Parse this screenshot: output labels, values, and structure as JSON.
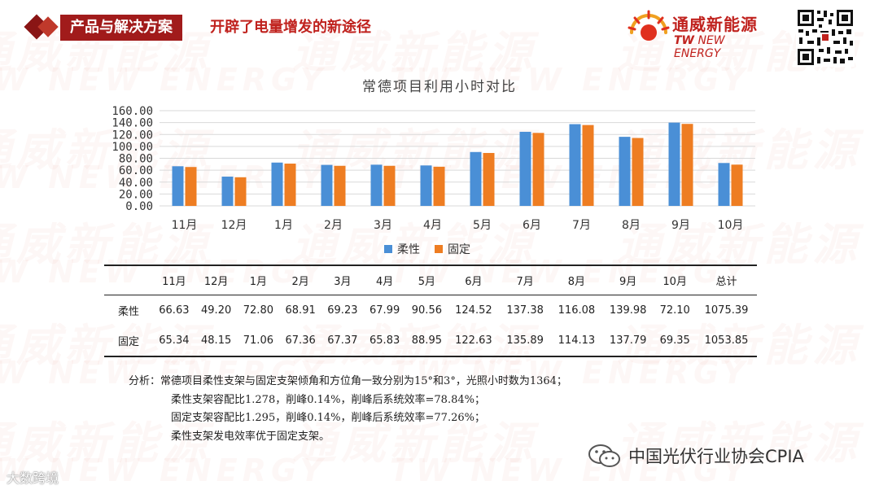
{
  "header": {
    "tag": "产品与解决方案",
    "subtitle": "开辟了电量增发的新途径",
    "logo_cn": "通威新能源",
    "logo_en_tw": "TW",
    "logo_en_rest": " NEW ENERGY"
  },
  "watermark": {
    "cn": "通威新能源",
    "en": "TW NEW ENERGY"
  },
  "chart_data": {
    "type": "bar",
    "title": "常德项目利用小时对比",
    "categories": [
      "11月",
      "12月",
      "1月",
      "2月",
      "3月",
      "4月",
      "5月",
      "6月",
      "7月",
      "8月",
      "9月",
      "10月"
    ],
    "series": [
      {
        "name": "柔性",
        "color": "#4a8fd6",
        "values": [
          66.63,
          49.2,
          72.8,
          68.91,
          69.23,
          67.99,
          90.56,
          124.52,
          137.38,
          116.08,
          139.98,
          72.1
        ]
      },
      {
        "name": "固定",
        "color": "#ee7d22",
        "values": [
          65.34,
          48.15,
          71.06,
          67.36,
          67.37,
          65.83,
          88.95,
          122.63,
          135.89,
          114.13,
          137.79,
          69.35
        ]
      }
    ],
    "ylim": [
      0,
      160
    ],
    "yticks": [
      "0.00",
      "20.00",
      "40.00",
      "60.00",
      "80.00",
      "100.00",
      "120.00",
      "140.00",
      "160.00"
    ],
    "grid": true,
    "legend": "bottom"
  },
  "table": {
    "headers": [
      "11月",
      "12月",
      "1月",
      "2月",
      "3月",
      "4月",
      "5月",
      "6月",
      "7月",
      "8月",
      "9月",
      "10月",
      "总计"
    ],
    "rows": [
      {
        "label": "柔性",
        "cells": [
          "66.63",
          "49.20",
          "72.80",
          "68.91",
          "69.23",
          "67.99",
          "90.56",
          "124.52",
          "137.38",
          "116.08",
          "139.98",
          "72.10",
          "1075.39"
        ]
      },
      {
        "label": "固定",
        "cells": [
          "65.34",
          "48.15",
          "71.06",
          "67.36",
          "67.37",
          "65.83",
          "88.95",
          "122.63",
          "135.89",
          "114.13",
          "137.79",
          "69.35",
          "1053.85"
        ]
      }
    ]
  },
  "analysis": {
    "line1": "分析：常德项目柔性支架与固定支架倾角和方位角一致分别为15°和3°，光照小时数为1364；",
    "line2": "柔性支架容配比1.278，削峰0.14%，削峰后系统效率=78.84%；",
    "line3": "固定支架容配比1.295，削峰0.14%，削峰后系统效率=77.26%；",
    "line4": "柔性支架发电效率优于固定支架。"
  },
  "footer": {
    "left": "大数跨境",
    "right": "中国光伏行业协会CPIA"
  },
  "colors": {
    "brand_red": "#c0221e",
    "tag_red": "#a11b1b",
    "series1": "#4a8fd6",
    "series2": "#ee7d22"
  }
}
